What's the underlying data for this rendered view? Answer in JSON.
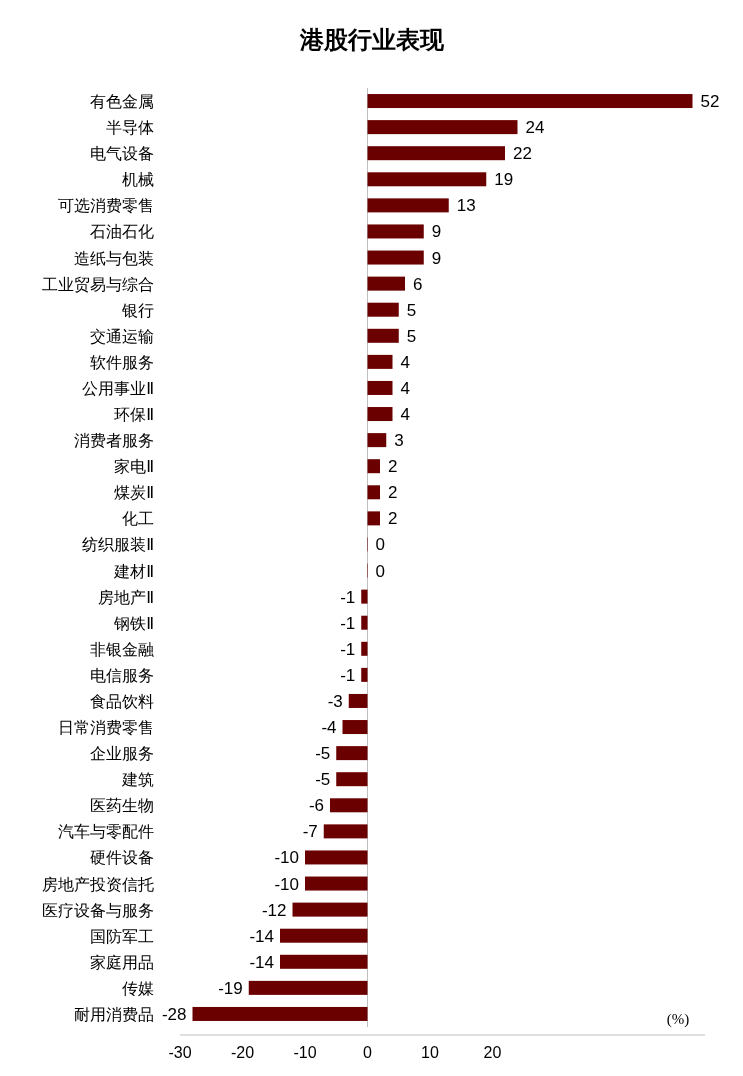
{
  "chart_data": {
    "type": "bar",
    "orientation": "horizontal",
    "title": "港股行业表现",
    "categories": [
      "有色金属",
      "半导体",
      "电气设备",
      "机械",
      "可选消费零售",
      "石油石化",
      "造纸与包装",
      "工业贸易与综合",
      "银行",
      "交通运输",
      "软件服务",
      "公用事业Ⅱ",
      "环保Ⅱ",
      "消费者服务",
      "家电Ⅱ",
      "煤炭Ⅱ",
      "化工",
      "纺织服装Ⅱ",
      "建材Ⅱ",
      "房地产Ⅱ",
      "钢铁Ⅱ",
      "非银金融",
      "电信服务",
      "食品饮料",
      "日常消费零售",
      "企业服务",
      "建筑",
      "医药生物",
      "汽车与零配件",
      "硬件设备",
      "房地产投资信托",
      "医疗设备与服务",
      "国防军工",
      "家庭用品",
      "传媒",
      "耐用消费品"
    ],
    "values": [
      52,
      24,
      22,
      19,
      13,
      9,
      9,
      6,
      5,
      5,
      4,
      4,
      4,
      3,
      2,
      2,
      2,
      0,
      0,
      -1,
      -1,
      -1,
      -1,
      -3,
      -4,
      -5,
      -5,
      -6,
      -7,
      -10,
      -10,
      -12,
      -14,
      -14,
      -19,
      -28
    ],
    "color": "#6b0000",
    "xlim": [
      -30,
      54
    ],
    "xticks": [
      -30,
      -20,
      -10,
      0,
      10,
      20
    ],
    "data_labels": true,
    "annotations": [
      "(%)"
    ]
  }
}
